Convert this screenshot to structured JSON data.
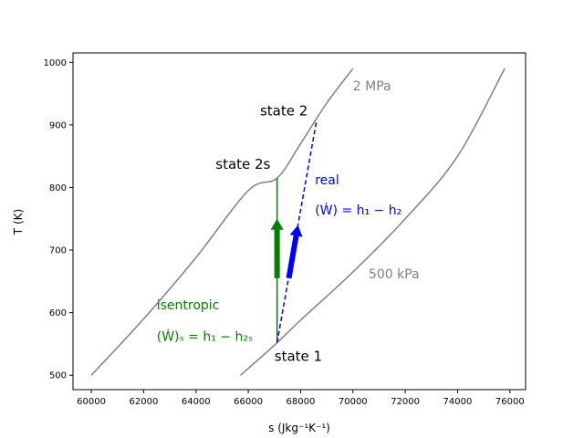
{
  "chart_data": {
    "type": "line",
    "xlabel": "s (Jkg⁻¹K⁻¹)",
    "ylabel": "T (K)",
    "xlim": [
      59300,
      76600
    ],
    "ylim": [
      477,
      1015
    ],
    "x_ticks": [
      60000,
      62000,
      64000,
      66000,
      68000,
      70000,
      72000,
      74000,
      76000
    ],
    "y_ticks": [
      500,
      600,
      700,
      800,
      900,
      1000
    ],
    "grid": false,
    "series": [
      {
        "name": "2 MPa",
        "color": "#808080",
        "points": [
          [
            60000,
            500
          ],
          [
            62000,
            590
          ],
          [
            64000,
            688
          ],
          [
            66000,
            795
          ],
          [
            67100,
            815
          ],
          [
            68000,
            870
          ],
          [
            69000,
            935
          ],
          [
            70000,
            990
          ]
        ]
      },
      {
        "name": "500 kPa",
        "color": "#808080",
        "points": [
          [
            65700,
            500
          ],
          [
            67000,
            548
          ],
          [
            68000,
            588
          ],
          [
            70000,
            665
          ],
          [
            72000,
            750
          ],
          [
            74000,
            850
          ],
          [
            75800,
            990
          ]
        ]
      }
    ],
    "lines": [
      {
        "name": "isentropic",
        "color": "#008000",
        "style": "solid",
        "points": [
          [
            67100,
            552
          ],
          [
            67100,
            815
          ]
        ]
      },
      {
        "name": "real",
        "color": "#0000ff",
        "style": "dashed",
        "points": [
          [
            67100,
            552
          ],
          [
            68600,
            905
          ]
        ]
      }
    ],
    "arrows": [
      {
        "name": "isentropic-work-arrow",
        "color": "#008000",
        "from": [
          67100,
          655
        ],
        "to": [
          67100,
          750
        ]
      },
      {
        "name": "real-work-arrow",
        "color": "#0000ff",
        "from": [
          67550,
          655
        ],
        "to": [
          67900,
          740
        ]
      }
    ],
    "annotations": [
      {
        "name": "label-2mpa",
        "text": "2 MPa",
        "x": 70000,
        "y": 955,
        "color": "#808080"
      },
      {
        "name": "label-500kpa",
        "text": "500 kPa",
        "x": 70600,
        "y": 655,
        "color": "#808080"
      },
      {
        "name": "label-state-2",
        "text": "state 2",
        "x": 66450,
        "y": 915,
        "color": "#000000"
      },
      {
        "name": "label-state-2s",
        "text": "state 2s",
        "x": 64750,
        "y": 830,
        "color": "#000000"
      },
      {
        "name": "label-state-1",
        "text": "state 1",
        "x": 67000,
        "y": 523,
        "color": "#000000"
      },
      {
        "name": "label-real",
        "text": "real",
        "x": 68550,
        "y": 805,
        "color": "#0000ff"
      },
      {
        "name": "label-real-work",
        "text": "(Ẇ) = h₁ − h₂",
        "x": 68550,
        "y": 757,
        "color": "#0000ff"
      },
      {
        "name": "label-isentropic",
        "text": "isentropic",
        "x": 62500,
        "y": 605,
        "color": "#008000"
      },
      {
        "name": "label-isentropic-work",
        "text": "(Ẇ)ₛ = h₁ − h₂ₛ",
        "x": 62500,
        "y": 555,
        "color": "#008000"
      }
    ]
  }
}
